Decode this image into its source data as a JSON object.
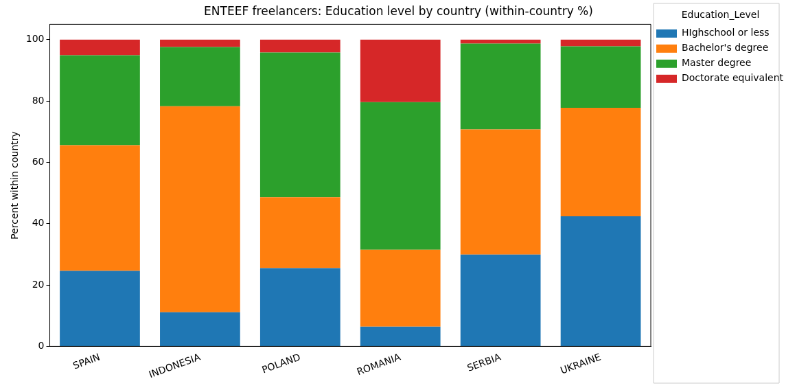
{
  "chart_data": {
    "type": "bar",
    "stacked": true,
    "title": "ENTEEF freelancers: Education level by country (within-country %)",
    "ylabel": "Percent within country",
    "legend_title": "Education_Level",
    "legend": "top right",
    "grid": false,
    "categories": [
      "SPAIN",
      "INDONESIA",
      "POLAND",
      "ROMANIA",
      "SERBIA",
      "UKRAINE"
    ],
    "ylim": [
      0,
      105
    ],
    "yticks": [
      0,
      20,
      40,
      60,
      80,
      100
    ],
    "series": [
      {
        "name": "HIghschool or less",
        "color": "#1f77b4",
        "values": [
          24.6,
          11.1,
          25.5,
          6.4,
          29.9,
          42.4
        ]
      },
      {
        "name": "Bachelor's degree",
        "color": "#ff7f0e",
        "values": [
          41.0,
          67.2,
          23.1,
          25.1,
          40.8,
          35.4
        ]
      },
      {
        "name": "Master degree",
        "color": "#2ca02c",
        "values": [
          29.3,
          19.3,
          47.2,
          48.1,
          28.0,
          20.0
        ]
      },
      {
        "name": "Doctorate equivalent",
        "color": "#d62728",
        "values": [
          5.1,
          2.4,
          4.2,
          20.4,
          1.3,
          2.2
        ]
      }
    ]
  }
}
